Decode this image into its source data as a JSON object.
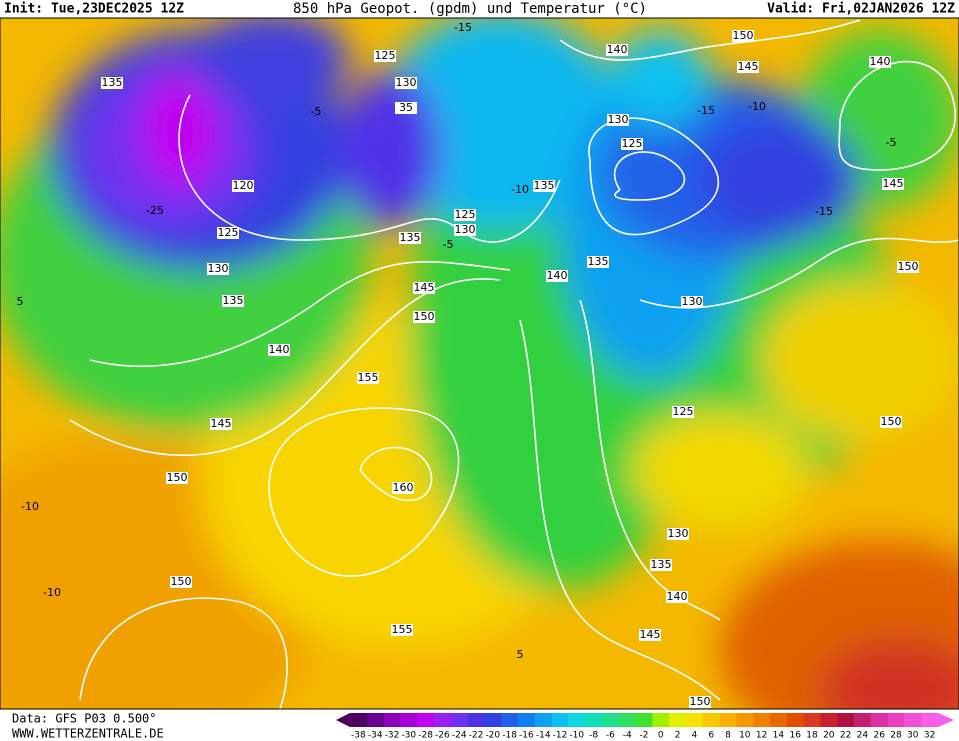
{
  "header": {
    "init": "Init: Tue,23DEC2025 12Z",
    "title": "850 hPa Geopot. (gpdm) und Temperatur (°C)",
    "valid": "Valid: Fri,02JAN2026 12Z"
  },
  "map": {
    "contour_labels": [
      "135",
      "125",
      "130",
      "35",
      "120",
      "125",
      "130",
      "135",
      "140",
      "145",
      "150",
      "150",
      "155",
      "160",
      "155",
      "150",
      "145",
      "135",
      "130",
      "125",
      "135",
      "140",
      "135",
      "130",
      "125",
      "140",
      "150",
      "145",
      "140",
      "145",
      "150",
      "130",
      "125",
      "150",
      "130",
      "135",
      "140",
      "145",
      "150"
    ],
    "temperature_labels": [
      "-15",
      "-10",
      "-15",
      "-10",
      "-15",
      "-5",
      "-25",
      "-10",
      "-10",
      "5",
      "-5",
      "5",
      "-5"
    ]
  },
  "footer": {
    "data": "Data: GFS P03 0.500°",
    "site": "WWW.WETTERZENTRALE.DE"
  },
  "colorbar": {
    "values": [
      -38,
      -34,
      -32,
      -30,
      -28,
      -26,
      -24,
      -22,
      -20,
      -18,
      -16,
      -14,
      -12,
      -10,
      -8,
      -6,
      -4,
      -2,
      0,
      2,
      4,
      6,
      8,
      10,
      12,
      14,
      16,
      18,
      20,
      22,
      24,
      26,
      28,
      30,
      32
    ],
    "colors": [
      "#4b0060",
      "#6a0090",
      "#8a00b8",
      "#a800d8",
      "#c000f0",
      "#9a20f0",
      "#7030f0",
      "#4a30e8",
      "#3040e0",
      "#2060e8",
      "#1080f0",
      "#10a0f0",
      "#10c0f0",
      "#10d8e0",
      "#10e0b8",
      "#20e090",
      "#30e060",
      "#40e030",
      "#a0f000",
      "#e0f000",
      "#f8e000",
      "#f8c800",
      "#f8b000",
      "#f89800",
      "#f08000",
      "#e86800",
      "#e05000",
      "#d83820",
      "#c82030",
      "#b01040",
      "#c02070",
      "#d830a0",
      "#e840c0",
      "#f050d8",
      "#f860e8"
    ]
  }
}
